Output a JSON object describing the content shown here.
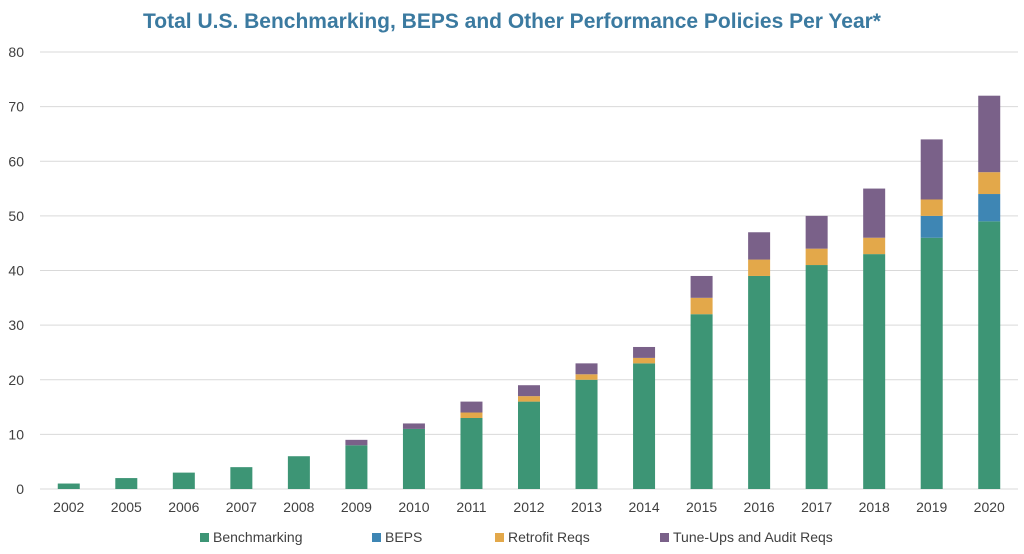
{
  "chart_data": {
    "type": "bar",
    "stacked": true,
    "title": "Total U.S. Benchmarking, BEPS and Other Performance Policies Per Year*",
    "xlabel": "",
    "ylabel": "",
    "ylim": [
      0,
      80
    ],
    "yticks": [
      "0",
      "10",
      "20",
      "30",
      "40",
      "50",
      "60",
      "70",
      "80"
    ],
    "grid": true,
    "legend_position": "bottom",
    "categories": [
      "2002",
      "2005",
      "2006",
      "2007",
      "2008",
      "2009",
      "2010",
      "2011",
      "2012",
      "2013",
      "2014",
      "2015",
      "2016",
      "2017",
      "2018",
      "2019",
      "2020"
    ],
    "series": [
      {
        "name": "Benchmarking",
        "color": "#3d9575",
        "values": [
          1,
          2,
          3,
          4,
          6,
          8,
          11,
          13,
          16,
          20,
          23,
          32,
          39,
          41,
          43,
          46,
          49
        ]
      },
      {
        "name": "BEPS",
        "color": "#3e86b4",
        "values": [
          0,
          0,
          0,
          0,
          0,
          0,
          0,
          0,
          0,
          0,
          0,
          0,
          0,
          0,
          0,
          4,
          5
        ]
      },
      {
        "name": "Retrofit Reqs",
        "color": "#e3a84a",
        "values": [
          0,
          0,
          0,
          0,
          0,
          0,
          0,
          1,
          1,
          1,
          1,
          3,
          3,
          3,
          3,
          3,
          4
        ]
      },
      {
        "name": "Tune-Ups and Audit Reqs",
        "color": "#7a6189",
        "values": [
          0,
          0,
          0,
          0,
          0,
          1,
          1,
          2,
          2,
          2,
          2,
          4,
          5,
          6,
          9,
          11,
          14
        ]
      }
    ],
    "colors": {
      "title": "#3b7aa0",
      "axis_text": "#404040",
      "grid": "#d9d9d9"
    }
  }
}
